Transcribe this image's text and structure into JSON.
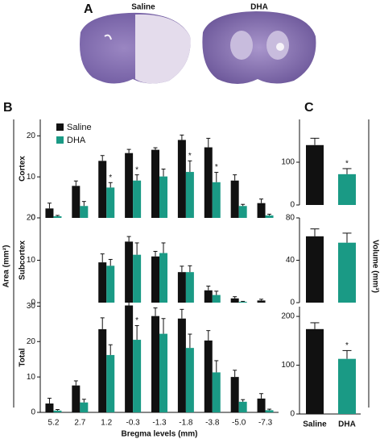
{
  "panel_a": {
    "label": "A",
    "titles": [
      "Saline",
      "DHA"
    ]
  },
  "chart_data": [
    {
      "type": "bar",
      "panel": "B",
      "y_label": "Area (mm²)",
      "x_label": "Bregma levels (mm)",
      "legend": "upper-left",
      "categories": [
        "5.2",
        "2.7",
        "1.2",
        "-0.3",
        "-1.3",
        "-1.8",
        "-3.8",
        "-5.0",
        "-7.3"
      ],
      "series": [
        {
          "name": "Saline",
          "color": "#111111"
        },
        {
          "name": "DHA",
          "color": "#1a9a85"
        }
      ],
      "panels": [
        {
          "name": "Cortex",
          "ylim": [
            0,
            24
          ],
          "yticks": [
            0,
            10,
            20
          ],
          "values": [
            [
              2.3,
              7.8,
              13.9,
              15.8,
              16.6,
              19.0,
              17.2,
              9.1,
              3.6
            ],
            [
              0.4,
              2.9,
              7.4,
              9.1,
              10.1,
              11.2,
              8.7,
              2.9,
              0.6
            ]
          ],
          "errors": [
            [
              1.3,
              1.2,
              1.3,
              0.9,
              0.5,
              1.2,
              2.2,
              1.4,
              1.0
            ],
            [
              0.2,
              1.1,
              1.2,
              1.4,
              1.8,
              2.7,
              2.4,
              0.4,
              0.3
            ]
          ],
          "annotations": [
            {
              "text": "*",
              "series": 1,
              "index": 2
            },
            {
              "text": "*",
              "series": 1,
              "index": 3
            },
            {
              "text": "*",
              "series": 1,
              "index": 5
            },
            {
              "text": "*",
              "series": 1,
              "index": 6
            }
          ]
        },
        {
          "name": "Subcortex",
          "ylim": [
            0,
            20
          ],
          "yticks": [
            0,
            10,
            20
          ],
          "values": [
            [
              null,
              null,
              9.5,
              14.4,
              10.9,
              7.2,
              2.9,
              1.0,
              0.5
            ],
            [
              null,
              null,
              8.7,
              11.3,
              11.7,
              7.2,
              1.8,
              0.2,
              null
            ]
          ],
          "errors": [
            [
              null,
              null,
              2.0,
              1.2,
              1.2,
              1.4,
              1.0,
              0.4,
              0.3
            ],
            [
              null,
              null,
              1.5,
              2.8,
              2.4,
              1.5,
              0.9,
              0.1,
              null
            ]
          ],
          "annotations": []
        },
        {
          "name": "Total",
          "ylim": [
            0,
            31
          ],
          "yticks": [
            0,
            10,
            20,
            30
          ],
          "values": [
            [
              2.5,
              7.6,
              23.5,
              30.2,
              27.2,
              26.5,
              20.3,
              10.0,
              3.9
            ],
            [
              0.5,
              2.8,
              16.2,
              20.5,
              22.2,
              18.2,
              11.3,
              3.0,
              0.6
            ]
          ],
          "errors": [
            [
              1.5,
              1.3,
              3.2,
              2.0,
              2.3,
              2.6,
              2.8,
              1.9,
              1.4
            ],
            [
              0.3,
              0.9,
              2.9,
              4.0,
              4.3,
              3.9,
              3.3,
              0.6,
              0.3
            ]
          ],
          "annotations": [
            {
              "text": "*",
              "series": 1,
              "index": 3
            }
          ]
        }
      ]
    },
    {
      "type": "bar",
      "panel": "C",
      "y_label": "Volume (mm³)",
      "categories": [
        "Saline",
        "DHA"
      ],
      "colors": [
        "#111111",
        "#1a9a85"
      ],
      "panels": [
        {
          "ylim": [
            0,
            200
          ],
          "yticks": [
            0,
            100
          ],
          "values": [
            140,
            72
          ],
          "errors": [
            16,
            13
          ],
          "annotations": [
            {
              "text": "*",
              "index": 1
            }
          ]
        },
        {
          "ylim": [
            0,
            80
          ],
          "yticks": [
            0,
            40,
            80
          ],
          "values": [
            62.6,
            56.6
          ],
          "errors": [
            7,
            9
          ],
          "annotations": []
        },
        {
          "ylim": [
            0,
            220
          ],
          "yticks": [
            0,
            100,
            200
          ],
          "values": [
            174,
            113
          ],
          "errors": [
            13,
            17
          ],
          "annotations": [
            {
              "text": "*",
              "index": 1
            }
          ]
        }
      ]
    }
  ]
}
